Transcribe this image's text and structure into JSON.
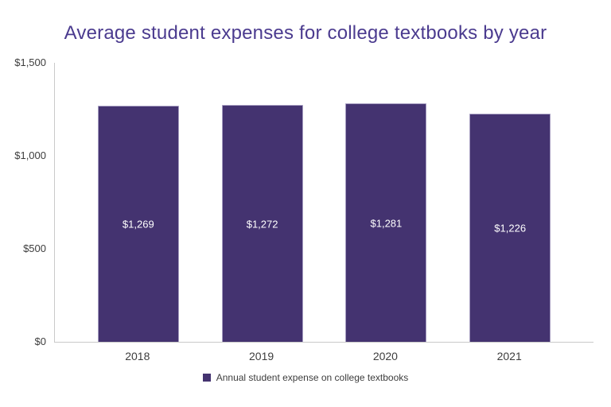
{
  "chart_data": {
    "type": "bar",
    "title": "Average student expenses for college textbooks by year",
    "categories": [
      "2018",
      "2019",
      "2020",
      "2021"
    ],
    "values": [
      1269,
      1272,
      1281,
      1226
    ],
    "value_labels": [
      "$1,269",
      "$1,272",
      "$1,281",
      "$1,226"
    ],
    "xlabel": "",
    "ylabel": "",
    "ylim": [
      0,
      1500
    ],
    "y_ticks": [
      {
        "value": 1500,
        "label": "$1,500"
      },
      {
        "value": 1000,
        "label": "$1,000"
      },
      {
        "value": 500,
        "label": "$500"
      },
      {
        "value": 0,
        "label": "$0"
      }
    ],
    "grid": false,
    "legend_position": "bottom",
    "legend": [
      {
        "label": "Annual student expense on college textbooks",
        "color": "#443370"
      }
    ],
    "colors": {
      "bar": "#443370",
      "bar_border": "#a59cc0",
      "title": "#4b3b8f",
      "axis_line": "#c9c9c9",
      "axis_text": "#3d3d3d",
      "value_label": "#ffffff"
    }
  }
}
